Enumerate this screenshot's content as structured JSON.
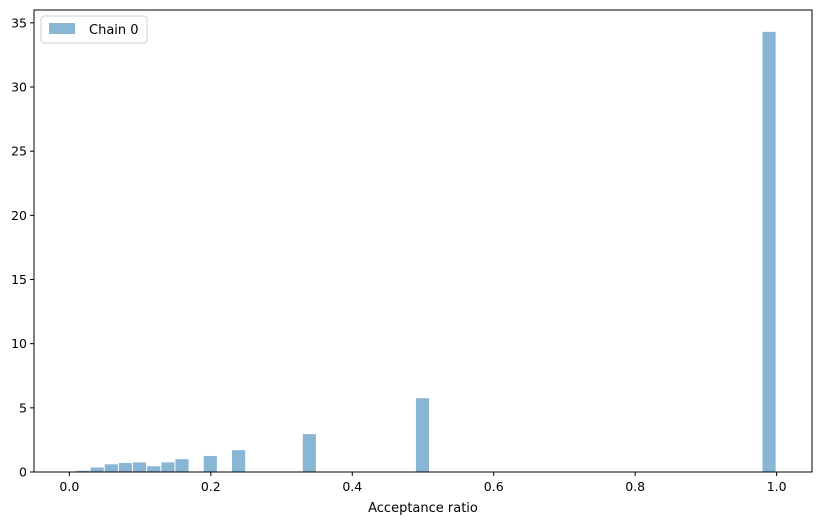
{
  "chart_data": {
    "type": "bar",
    "title": "",
    "xlabel": "Acceptance ratio",
    "ylabel": "",
    "xlim": [
      -0.05,
      1.05
    ],
    "ylim": [
      0,
      36
    ],
    "xticks": [
      0.0,
      0.2,
      0.4,
      0.6,
      0.8,
      1.0
    ],
    "xtick_labels": [
      "0.0",
      "0.2",
      "0.4",
      "0.6",
      "0.8",
      "1.0"
    ],
    "yticks": [
      0,
      5,
      10,
      15,
      20,
      25,
      30,
      35
    ],
    "ytick_labels": [
      "0",
      "5",
      "10",
      "15",
      "20",
      "25",
      "30",
      "35"
    ],
    "grid": false,
    "legend_position": "top-left",
    "bar_color": "#8ab6d6",
    "series": [
      {
        "name": "Chain 0",
        "bin_width": 0.02,
        "bins": [
          {
            "x": 0.02,
            "value": 0.1
          },
          {
            "x": 0.04,
            "value": 0.35
          },
          {
            "x": 0.06,
            "value": 0.6
          },
          {
            "x": 0.08,
            "value": 0.7
          },
          {
            "x": 0.1,
            "value": 0.75
          },
          {
            "x": 0.12,
            "value": 0.45
          },
          {
            "x": 0.14,
            "value": 0.75
          },
          {
            "x": 0.16,
            "value": 1.0
          },
          {
            "x": 0.2,
            "value": 1.25
          },
          {
            "x": 0.24,
            "value": 1.7
          },
          {
            "x": 0.34,
            "value": 2.95
          },
          {
            "x": 0.5,
            "value": 5.75
          },
          {
            "x": 0.99,
            "value": 34.3
          }
        ]
      }
    ]
  }
}
